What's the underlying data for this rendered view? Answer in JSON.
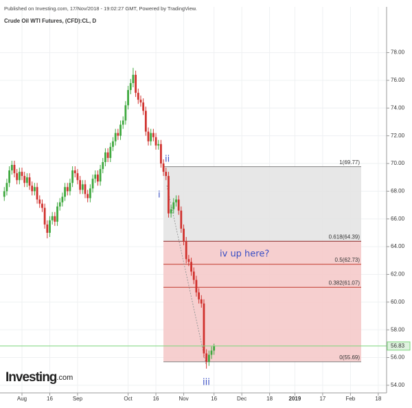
{
  "header": {
    "published": "Published on Investing.com, 17/Nov/2018 - 19:02:27 GMT, Powered by TradingView.",
    "logo": "Investing",
    "logo_suffix": ".com"
  },
  "chart_data": {
    "type": "candlestick",
    "title": "Crude Oil WTI Futures, (CFD):CL, D",
    "up_color": "#3ea83e",
    "down_color": "#d0312d",
    "grid": true,
    "x": [
      -7,
      -6,
      -5,
      -4,
      -3,
      -2,
      -1,
      0,
      1,
      2,
      3,
      4,
      5,
      6,
      7,
      8,
      9,
      10,
      11,
      12,
      13,
      14,
      15,
      16,
      17,
      18,
      19,
      20,
      21,
      22,
      23,
      24,
      25,
      26,
      27,
      28,
      29,
      30,
      31,
      32,
      33,
      34,
      35,
      36,
      37,
      38,
      39,
      40,
      41,
      42,
      43,
      44,
      45,
      46,
      47,
      48,
      49,
      50,
      51,
      52,
      53,
      54,
      55,
      56,
      57,
      58,
      59,
      60,
      61,
      62,
      63,
      64,
      65,
      66,
      67,
      68,
      69,
      70,
      71,
      72,
      73,
      74,
      75,
      76
    ],
    "open": [
      67.6,
      68.0,
      68.6,
      69.5,
      69.9,
      69.3,
      68.8,
      69.4,
      69.1,
      68.6,
      69.0,
      68.4,
      68.0,
      68.3,
      67.4,
      67.1,
      66.8,
      65.6,
      65.0,
      65.9,
      66.2,
      65.8,
      66.9,
      67.2,
      67.6,
      68.3,
      68.0,
      68.6,
      69.5,
      69.3,
      68.8,
      68.1,
      68.5,
      67.8,
      67.5,
      68.2,
      68.9,
      69.2,
      68.7,
      69.6,
      70.1,
      70.8,
      70.4,
      71.2,
      71.6,
      72.2,
      72.0,
      72.8,
      73.1,
      74.2,
      75.3,
      75.8,
      76.4,
      75.1,
      74.6,
      74.4,
      73.8,
      72.3,
      71.6,
      72.2,
      71.9,
      71.3,
      71.4,
      70.0,
      69.4,
      69.1,
      66.4,
      66.7,
      67.2,
      67.4,
      66.6,
      65.3,
      64.4,
      63.1,
      62.9,
      62.2,
      61.6,
      60.7,
      60.2,
      59.9,
      56.3,
      55.7,
      56.2,
      56.5
    ],
    "high": [
      68.3,
      68.9,
      69.8,
      70.2,
      70.2,
      69.6,
      69.7,
      69.7,
      69.4,
      69.3,
      69.3,
      68.7,
      68.6,
      68.6,
      67.7,
      67.4,
      67.1,
      65.9,
      66.2,
      66.5,
      66.5,
      67.2,
      67.5,
      67.9,
      68.6,
      68.6,
      68.9,
      69.8,
      69.8,
      69.6,
      69.1,
      68.8,
      68.8,
      68.1,
      68.5,
      69.2,
      69.5,
      69.5,
      69.9,
      70.4,
      71.1,
      71.1,
      71.5,
      71.9,
      72.5,
      72.5,
      73.1,
      73.4,
      74.5,
      75.6,
      76.1,
      76.9,
      76.7,
      75.4,
      74.9,
      74.7,
      74.1,
      72.6,
      72.5,
      72.5,
      72.2,
      71.7,
      71.7,
      70.3,
      69.7,
      69.4,
      67.0,
      67.5,
      67.7,
      67.7,
      66.9,
      65.6,
      64.7,
      63.4,
      63.2,
      62.5,
      61.9,
      61.0,
      60.5,
      60.2,
      56.6,
      56.5,
      56.8,
      57.0
    ],
    "low": [
      67.3,
      67.7,
      68.3,
      69.2,
      69.0,
      68.5,
      68.5,
      68.8,
      68.3,
      68.3,
      68.1,
      67.7,
      67.7,
      67.1,
      66.8,
      66.5,
      65.3,
      64.6,
      64.7,
      65.6,
      65.5,
      65.5,
      66.6,
      66.9,
      67.3,
      67.7,
      67.7,
      68.3,
      69.0,
      68.5,
      67.8,
      67.8,
      67.5,
      67.2,
      67.2,
      67.9,
      68.6,
      68.4,
      68.4,
      69.3,
      69.8,
      70.1,
      70.1,
      70.9,
      71.3,
      71.7,
      71.7,
      72.5,
      72.8,
      73.9,
      75.0,
      75.5,
      74.8,
      74.3,
      74.1,
      73.5,
      72.0,
      71.3,
      71.3,
      71.6,
      71.0,
      71.0,
      69.7,
      69.1,
      68.8,
      66.1,
      66.1,
      66.4,
      66.9,
      66.3,
      65.0,
      64.1,
      62.8,
      62.6,
      61.9,
      61.3,
      60.4,
      59.9,
      59.6,
      56.0,
      55.2,
      55.4,
      55.9,
      56.2
    ],
    "close": [
      68.0,
      68.6,
      69.5,
      69.9,
      69.3,
      68.8,
      69.4,
      69.1,
      68.6,
      69.0,
      68.4,
      68.0,
      68.3,
      67.4,
      67.1,
      66.8,
      65.6,
      65.0,
      65.9,
      66.2,
      65.8,
      66.9,
      67.2,
      67.6,
      68.3,
      68.0,
      68.6,
      69.5,
      69.3,
      68.8,
      68.1,
      68.5,
      67.8,
      67.5,
      68.2,
      68.9,
      69.2,
      68.7,
      69.6,
      70.1,
      70.8,
      70.4,
      71.2,
      71.6,
      72.2,
      72.0,
      72.8,
      73.1,
      74.2,
      75.3,
      75.8,
      76.4,
      75.1,
      74.6,
      74.4,
      73.8,
      72.3,
      71.6,
      72.2,
      71.9,
      71.3,
      71.4,
      70.0,
      69.4,
      69.1,
      66.4,
      66.7,
      67.2,
      67.4,
      66.6,
      65.3,
      64.4,
      63.1,
      62.9,
      62.2,
      61.6,
      60.7,
      60.2,
      59.9,
      56.3,
      55.7,
      56.2,
      56.5,
      56.83
    ],
    "xlim": [
      -8.7,
      144.3
    ],
    "ylim": [
      53.45,
      81.3
    ],
    "xticks": [
      {
        "value": 0,
        "label": "Aug"
      },
      {
        "value": 11,
        "label": "16"
      },
      {
        "value": 22,
        "label": "Sep"
      },
      {
        "value": 42,
        "label": "Oct"
      },
      {
        "value": 53,
        "label": "16"
      },
      {
        "value": 64,
        "label": "Nov"
      },
      {
        "value": 76,
        "label": "16"
      },
      {
        "value": 87,
        "label": "Dec"
      },
      {
        "value": 98,
        "label": "18"
      },
      {
        "value": 108,
        "label": "2019"
      },
      {
        "value": 119,
        "label": "17"
      },
      {
        "value": 130,
        "label": "Feb"
      },
      {
        "value": 141,
        "label": "18"
      }
    ],
    "yticks": [
      {
        "value": 54,
        "label": "54.00"
      },
      {
        "value": 56,
        "label": "56.00"
      },
      {
        "value": 58,
        "label": "58.00"
      },
      {
        "value": 60,
        "label": "60.00"
      },
      {
        "value": 62,
        "label": "62.00"
      },
      {
        "value": 64,
        "label": "64.00"
      },
      {
        "value": 66,
        "label": "66.00"
      },
      {
        "value": 68,
        "label": "68.00"
      },
      {
        "value": 70,
        "label": "70.00"
      },
      {
        "value": 72,
        "label": "72.00"
      },
      {
        "value": 74,
        "label": "74.00"
      },
      {
        "value": 76,
        "label": "76.00"
      },
      {
        "value": 78,
        "label": "78.00"
      }
    ],
    "fib_levels": [
      {
        "value": 69.77,
        "label": "1(69.77)",
        "color": "#808080"
      },
      {
        "value": 64.39,
        "label": "0.618(64.39)",
        "color": "#8b2323"
      },
      {
        "value": 62.73,
        "label": "0.5(62.73)",
        "color": "#c0392b"
      },
      {
        "value": 61.07,
        "label": "0.382(61.07)",
        "color": "#c0392b"
      },
      {
        "value": 55.69,
        "label": "0(55.69)",
        "color": "#808080"
      }
    ],
    "annotations": [
      "ii",
      "i",
      "iii",
      "iv up here?"
    ]
  }
}
